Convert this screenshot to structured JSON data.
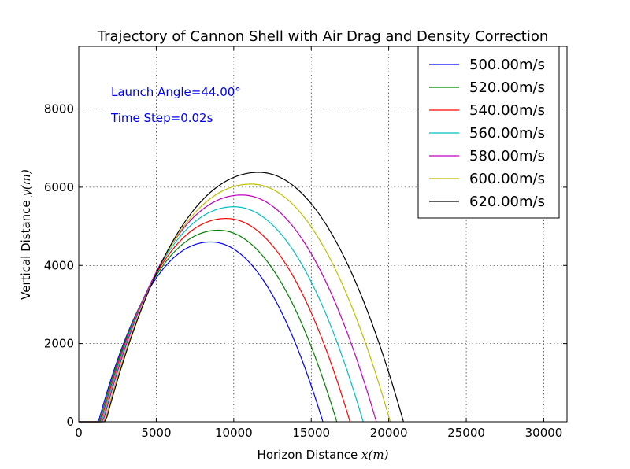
{
  "chart_data": {
    "type": "line",
    "title": "Trajectory of Cannon Shell with Air Drag and Density Correction",
    "xlabel": "Horizon Distance",
    "xlabel_math": "x(m)",
    "ylabel": "Vertical Distance",
    "ylabel_math": "y(m)",
    "xlim": [
      0,
      31500
    ],
    "ylim": [
      0,
      9600
    ],
    "xticks": [
      0,
      5000,
      10000,
      15000,
      20000,
      25000,
      30000
    ],
    "yticks": [
      0,
      2000,
      4000,
      6000,
      8000
    ],
    "grid": true,
    "legend_position": "top-right",
    "annotations": [
      "Launch Angle=44.00°",
      "Time Step=0.02s"
    ],
    "annotation_color": "#0000ff",
    "series": [
      {
        "name": "500.00m/s",
        "color": "#0000ff",
        "apex_x": 8500,
        "apex_y": 4600,
        "range": 15750
      },
      {
        "name": "520.00m/s",
        "color": "#008000",
        "apex_x": 9000,
        "apex_y": 4900,
        "range": 16650
      },
      {
        "name": "540.00m/s",
        "color": "#ff0000",
        "apex_x": 9500,
        "apex_y": 5200,
        "range": 17500
      },
      {
        "name": "560.00m/s",
        "color": "#00bfbf",
        "apex_x": 10000,
        "apex_y": 5500,
        "range": 18350
      },
      {
        "name": "580.00m/s",
        "color": "#bf00bf",
        "apex_x": 10500,
        "apex_y": 5800,
        "range": 19200
      },
      {
        "name": "600.00m/s",
        "color": "#bfbf00",
        "apex_x": 11100,
        "apex_y": 6080,
        "range": 20100
      },
      {
        "name": "620.00m/s",
        "color": "#000000",
        "apex_x": 11600,
        "apex_y": 6380,
        "range": 20950
      }
    ]
  }
}
